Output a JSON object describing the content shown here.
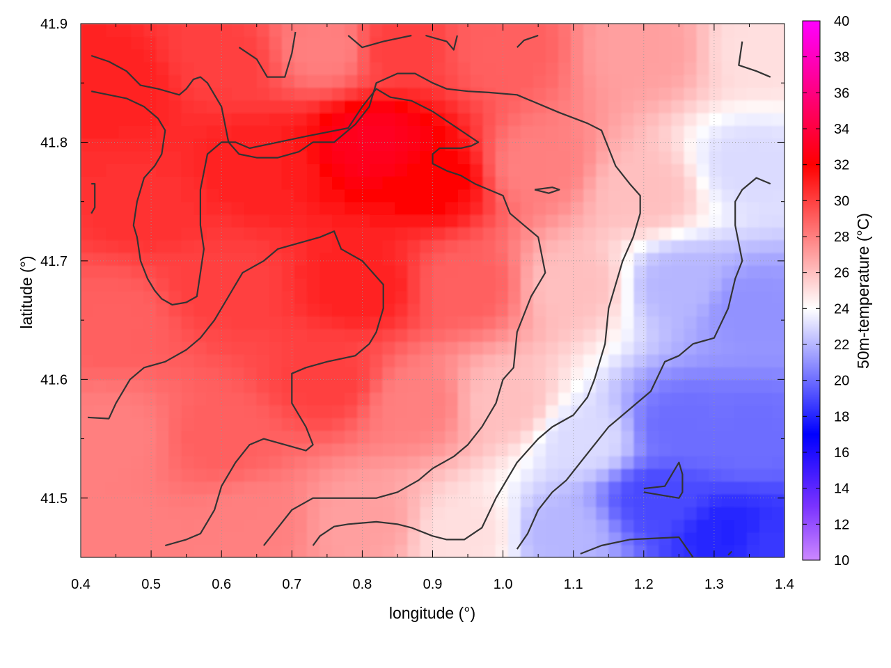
{
  "chart_data": {
    "type": "heatmap",
    "xlabel": "longitude (°)",
    "ylabel": "latitude (°)",
    "colorbar_label": "50m-temperature (°C)",
    "xlim": [
      0.4,
      1.4
    ],
    "ylim": [
      41.45,
      41.9
    ],
    "x_ticks": [
      "0.4",
      "0.5",
      "0.6",
      "0.7",
      "0.8",
      "0.9",
      "1.0",
      "1.1",
      "1.2",
      "1.3",
      "1.4"
    ],
    "y_ticks": [
      "41.5",
      "41.6",
      "41.7",
      "41.8",
      "41.9"
    ],
    "colorbar_range": [
      10,
      40
    ],
    "colorbar_ticks": [
      "10",
      "12",
      "14",
      "16",
      "18",
      "20",
      "22",
      "24",
      "26",
      "28",
      "30",
      "32",
      "34",
      "36",
      "38",
      "40"
    ],
    "colormap": [
      {
        "value": 10,
        "color": "#cc88ff"
      },
      {
        "value": 13,
        "color": "#7a33ff"
      },
      {
        "value": 17,
        "color": "#0000ff"
      },
      {
        "value": 24,
        "color": "#ffffff"
      },
      {
        "value": 32,
        "color": "#ff0000"
      },
      {
        "value": 36,
        "color": "#ff0080"
      },
      {
        "value": 40,
        "color": "#ff00ff"
      }
    ],
    "grid": true,
    "temperature_field_samples": [
      {
        "lon": 0.45,
        "lat": 41.85,
        "value": 31
      },
      {
        "lon": 0.6,
        "lat": 41.87,
        "value": 30
      },
      {
        "lon": 0.75,
        "lat": 41.88,
        "value": 28
      },
      {
        "lon": 0.85,
        "lat": 41.88,
        "value": 30
      },
      {
        "lon": 1.0,
        "lat": 41.88,
        "value": 29
      },
      {
        "lon": 1.2,
        "lat": 41.88,
        "value": 27
      },
      {
        "lon": 1.37,
        "lat": 41.88,
        "value": 25
      },
      {
        "lon": 0.5,
        "lat": 41.75,
        "value": 30.5
      },
      {
        "lon": 0.65,
        "lat": 41.78,
        "value": 31
      },
      {
        "lon": 0.82,
        "lat": 41.8,
        "value": 33
      },
      {
        "lon": 0.9,
        "lat": 41.77,
        "value": 32
      },
      {
        "lon": 1.05,
        "lat": 41.78,
        "value": 28
      },
      {
        "lon": 1.2,
        "lat": 41.76,
        "value": 26
      },
      {
        "lon": 1.35,
        "lat": 41.78,
        "value": 23
      },
      {
        "lon": 0.45,
        "lat": 41.65,
        "value": 29
      },
      {
        "lon": 0.6,
        "lat": 41.68,
        "value": 30
      },
      {
        "lon": 0.8,
        "lat": 41.68,
        "value": 31
      },
      {
        "lon": 0.95,
        "lat": 41.68,
        "value": 29
      },
      {
        "lon": 1.1,
        "lat": 41.68,
        "value": 26
      },
      {
        "lon": 1.25,
        "lat": 41.68,
        "value": 22
      },
      {
        "lon": 1.35,
        "lat": 41.66,
        "value": 21
      },
      {
        "lon": 0.45,
        "lat": 41.55,
        "value": 28
      },
      {
        "lon": 0.6,
        "lat": 41.55,
        "value": 29
      },
      {
        "lon": 0.75,
        "lat": 41.6,
        "value": 30
      },
      {
        "lon": 0.88,
        "lat": 41.58,
        "value": 28
      },
      {
        "lon": 1.0,
        "lat": 41.58,
        "value": 26
      },
      {
        "lon": 1.12,
        "lat": 41.55,
        "value": 23
      },
      {
        "lon": 1.25,
        "lat": 41.56,
        "value": 20
      },
      {
        "lon": 1.35,
        "lat": 41.55,
        "value": 20
      },
      {
        "lon": 0.45,
        "lat": 41.47,
        "value": 28
      },
      {
        "lon": 0.65,
        "lat": 41.48,
        "value": 28
      },
      {
        "lon": 0.8,
        "lat": 41.48,
        "value": 27
      },
      {
        "lon": 0.95,
        "lat": 41.47,
        "value": 25
      },
      {
        "lon": 1.08,
        "lat": 41.47,
        "value": 22
      },
      {
        "lon": 1.22,
        "lat": 41.5,
        "value": 19
      },
      {
        "lon": 1.32,
        "lat": 41.47,
        "value": 18
      },
      {
        "lon": 1.38,
        "lat": 41.46,
        "value": 18.5
      }
    ],
    "contours": [
      [
        [
          0.415,
          41.873
        ],
        [
          0.44,
          41.868
        ],
        [
          0.465,
          41.86
        ],
        [
          0.485,
          41.848
        ],
        [
          0.51,
          41.845
        ],
        [
          0.54,
          41.84
        ],
        [
          0.55,
          41.845
        ],
        [
          0.56,
          41.853
        ],
        [
          0.57,
          41.855
        ],
        [
          0.58,
          41.85
        ],
        [
          0.6,
          41.83
        ],
        [
          0.61,
          41.8
        ],
        [
          0.625,
          41.79
        ],
        [
          0.65,
          41.787
        ],
        [
          0.68,
          41.787
        ],
        [
          0.71,
          41.792
        ],
        [
          0.73,
          41.8
        ],
        [
          0.76,
          41.8
        ],
        [
          0.77,
          41.805
        ],
        [
          0.79,
          41.815
        ],
        [
          0.81,
          41.83
        ],
        [
          0.82,
          41.85
        ],
        [
          0.85,
          41.858
        ],
        [
          0.875,
          41.858
        ],
        [
          0.9,
          41.85
        ],
        [
          0.92,
          41.845
        ],
        [
          0.95,
          41.843
        ],
        [
          0.98,
          41.842
        ],
        [
          1.02,
          41.84
        ],
        [
          1.06,
          41.83
        ],
        [
          1.08,
          41.825
        ],
        [
          1.12,
          41.816
        ],
        [
          1.14,
          41.81
        ],
        [
          1.15,
          41.795
        ],
        [
          1.16,
          41.78
        ],
        [
          1.18,
          41.765
        ],
        [
          1.195,
          41.755
        ],
        [
          1.195,
          41.74
        ],
        [
          1.185,
          41.72
        ],
        [
          1.17,
          41.7
        ],
        [
          1.16,
          41.68
        ],
        [
          1.15,
          41.66
        ],
        [
          1.145,
          41.63
        ],
        [
          1.13,
          41.6
        ],
        [
          1.12,
          41.585
        ],
        [
          1.1,
          41.57
        ],
        [
          1.07,
          41.56
        ],
        [
          1.05,
          41.55
        ],
        [
          1.02,
          41.53
        ],
        [
          0.99,
          41.5
        ],
        [
          0.97,
          41.475
        ],
        [
          0.945,
          41.465
        ],
        [
          0.92,
          41.465
        ],
        [
          0.9,
          41.468
        ],
        [
          0.87,
          41.475
        ],
        [
          0.85,
          41.478
        ],
        [
          0.82,
          41.48
        ],
        [
          0.78,
          41.478
        ],
        [
          0.76,
          41.476
        ],
        [
          0.74,
          41.468
        ],
        [
          0.73,
          41.46
        ]
      ],
      [
        [
          0.415,
          41.843
        ],
        [
          0.44,
          41.84
        ],
        [
          0.465,
          41.837
        ],
        [
          0.49,
          41.83
        ],
        [
          0.51,
          41.82
        ],
        [
          0.52,
          41.81
        ],
        [
          0.515,
          41.79
        ],
        [
          0.505,
          41.78
        ],
        [
          0.49,
          41.77
        ],
        [
          0.48,
          41.75
        ],
        [
          0.475,
          41.73
        ],
        [
          0.48,
          41.72
        ],
        [
          0.485,
          41.7
        ],
        [
          0.495,
          41.685
        ],
        [
          0.505,
          41.675
        ],
        [
          0.515,
          41.668
        ],
        [
          0.53,
          41.663
        ],
        [
          0.55,
          41.665
        ],
        [
          0.565,
          41.67
        ],
        [
          0.57,
          41.69
        ],
        [
          0.575,
          41.71
        ],
        [
          0.57,
          41.73
        ],
        [
          0.57,
          41.76
        ],
        [
          0.58,
          41.79
        ],
        [
          0.6,
          41.8
        ],
        [
          0.62,
          41.8
        ],
        [
          0.64,
          41.795
        ],
        [
          0.68,
          41.8
        ],
        [
          0.72,
          41.805
        ],
        [
          0.78,
          41.812
        ],
        [
          0.8,
          41.83
        ],
        [
          0.82,
          41.845
        ],
        [
          0.84,
          41.838
        ],
        [
          0.87,
          41.835
        ],
        [
          0.9,
          41.826
        ],
        [
          0.92,
          41.818
        ],
        [
          0.94,
          41.81
        ],
        [
          0.965,
          41.8
        ],
        [
          0.955,
          41.797
        ],
        [
          0.94,
          41.795
        ],
        [
          0.91,
          41.795
        ],
        [
          0.9,
          41.79
        ],
        [
          0.9,
          41.782
        ],
        [
          0.92,
          41.776
        ],
        [
          0.94,
          41.772
        ],
        [
          0.96,
          41.765
        ],
        [
          0.98,
          41.76
        ],
        [
          1.0,
          41.755
        ],
        [
          1.01,
          41.74
        ],
        [
          1.03,
          41.73
        ],
        [
          1.05,
          41.72
        ],
        [
          1.06,
          41.69
        ],
        [
          1.05,
          41.68
        ],
        [
          1.04,
          41.67
        ],
        [
          1.03,
          41.655
        ],
        [
          1.02,
          41.64
        ],
        [
          1.015,
          41.61
        ],
        [
          1.0,
          41.6
        ],
        [
          0.99,
          41.58
        ],
        [
          0.97,
          41.56
        ],
        [
          0.95,
          41.545
        ],
        [
          0.93,
          41.535
        ],
        [
          0.9,
          41.525
        ],
        [
          0.88,
          41.515
        ],
        [
          0.85,
          41.505
        ],
        [
          0.82,
          41.5
        ],
        [
          0.79,
          41.5
        ],
        [
          0.76,
          41.5
        ],
        [
          0.73,
          41.5
        ],
        [
          0.7,
          41.49
        ],
        [
          0.68,
          41.475
        ],
        [
          0.66,
          41.46
        ]
      ],
      [
        [
          0.41,
          41.568
        ],
        [
          0.44,
          41.567
        ],
        [
          0.45,
          41.58
        ],
        [
          0.47,
          41.6
        ],
        [
          0.49,
          41.61
        ],
        [
          0.52,
          41.615
        ],
        [
          0.55,
          41.625
        ],
        [
          0.57,
          41.635
        ],
        [
          0.59,
          41.65
        ],
        [
          0.61,
          41.67
        ],
        [
          0.63,
          41.69
        ],
        [
          0.66,
          41.7
        ],
        [
          0.68,
          41.71
        ],
        [
          0.71,
          41.715
        ],
        [
          0.74,
          41.72
        ],
        [
          0.76,
          41.725
        ],
        [
          0.77,
          41.71
        ],
        [
          0.8,
          41.7
        ],
        [
          0.83,
          41.68
        ],
        [
          0.83,
          41.66
        ],
        [
          0.82,
          41.64
        ],
        [
          0.81,
          41.63
        ],
        [
          0.79,
          41.62
        ],
        [
          0.75,
          41.615
        ],
        [
          0.72,
          41.61
        ],
        [
          0.7,
          41.605
        ],
        [
          0.7,
          41.58
        ],
        [
          0.72,
          41.56
        ],
        [
          0.73,
          41.545
        ],
        [
          0.72,
          41.54
        ],
        [
          0.69,
          41.545
        ],
        [
          0.66,
          41.55
        ],
        [
          0.64,
          41.545
        ],
        [
          0.62,
          41.53
        ],
        [
          0.6,
          41.51
        ],
        [
          0.59,
          41.49
        ],
        [
          0.58,
          41.48
        ],
        [
          0.57,
          41.47
        ],
        [
          0.55,
          41.465
        ],
        [
          0.52,
          41.46
        ]
      ],
      [
        [
          0.415,
          41.765
        ],
        [
          0.42,
          41.765
        ],
        [
          0.42,
          41.745
        ],
        [
          0.415,
          41.74
        ]
      ],
      [
        [
          0.625,
          41.88
        ],
        [
          0.65,
          41.87
        ],
        [
          0.665,
          41.855
        ],
        [
          0.69,
          41.855
        ],
        [
          0.7,
          41.875
        ],
        [
          0.705,
          41.893
        ]
      ],
      [
        [
          0.78,
          41.89
        ],
        [
          0.8,
          41.88
        ],
        [
          0.83,
          41.885
        ],
        [
          0.87,
          41.89
        ]
      ],
      [
        [
          0.89,
          41.89
        ],
        [
          0.92,
          41.885
        ],
        [
          0.93,
          41.878
        ],
        [
          0.935,
          41.89
        ]
      ],
      [
        [
          1.02,
          41.88
        ],
        [
          1.03,
          41.886
        ],
        [
          1.05,
          41.89
        ]
      ],
      [
        [
          1.34,
          41.885
        ],
        [
          1.335,
          41.865
        ],
        [
          1.36,
          41.86
        ],
        [
          1.38,
          41.855
        ]
      ],
      [
        [
          1.045,
          41.76
        ],
        [
          1.07,
          41.762
        ],
        [
          1.08,
          41.76
        ],
        [
          1.065,
          41.757
        ],
        [
          1.045,
          41.76
        ]
      ],
      [
        [
          1.02,
          41.457
        ],
        [
          1.035,
          41.47
        ],
        [
          1.05,
          41.49
        ],
        [
          1.07,
          41.505
        ],
        [
          1.09,
          41.515
        ],
        [
          1.11,
          41.53
        ],
        [
          1.13,
          41.545
        ],
        [
          1.15,
          41.56
        ],
        [
          1.17,
          41.57
        ],
        [
          1.19,
          41.58
        ],
        [
          1.21,
          41.59
        ],
        [
          1.23,
          41.615
        ],
        [
          1.25,
          41.62
        ],
        [
          1.27,
          41.63
        ],
        [
          1.3,
          41.635
        ],
        [
          1.32,
          41.66
        ],
        [
          1.33,
          41.685
        ],
        [
          1.34,
          41.7
        ],
        [
          1.33,
          41.73
        ],
        [
          1.33,
          41.75
        ],
        [
          1.34,
          41.76
        ],
        [
          1.36,
          41.77
        ],
        [
          1.38,
          41.765
        ]
      ],
      [
        [
          1.2,
          41.508
        ],
        [
          1.23,
          41.51
        ],
        [
          1.24,
          41.52
        ],
        [
          1.25,
          41.53
        ],
        [
          1.255,
          41.52
        ],
        [
          1.255,
          41.505
        ],
        [
          1.25,
          41.5
        ],
        [
          1.2,
          41.505
        ]
      ],
      [
        [
          1.11,
          41.453
        ],
        [
          1.14,
          41.46
        ],
        [
          1.18,
          41.465
        ],
        [
          1.25,
          41.467
        ],
        [
          1.27,
          41.45
        ]
      ],
      [
        [
          1.32,
          41.452
        ],
        [
          1.325,
          41.455
        ]
      ]
    ]
  }
}
